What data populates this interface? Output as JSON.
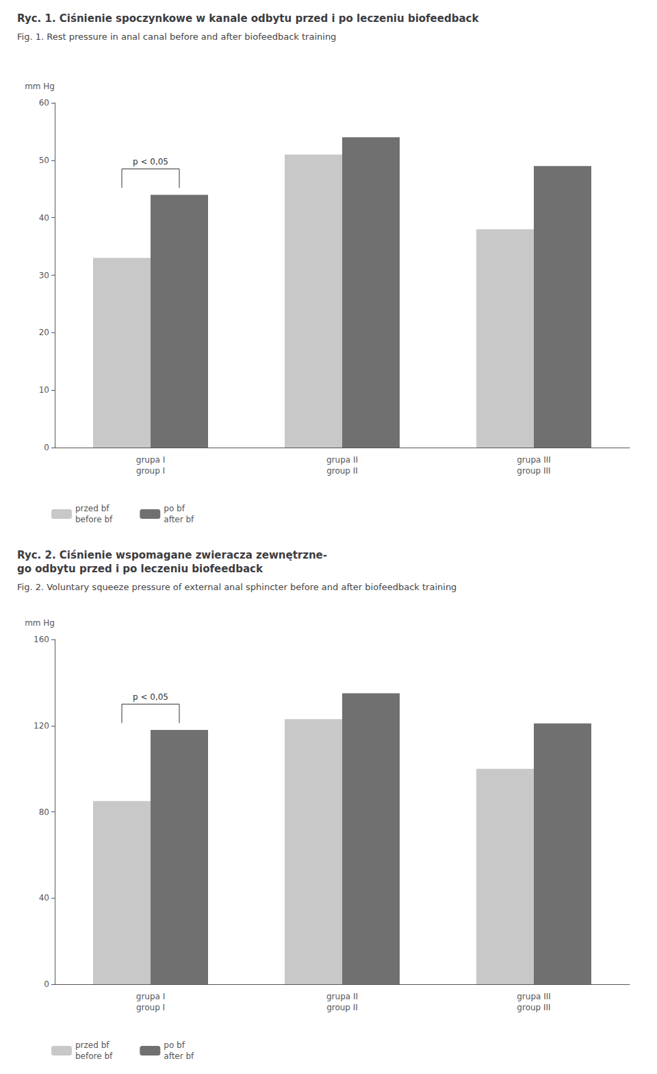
{
  "chart_data": [
    {
      "type": "bar",
      "title": "Ryc. 1. Ciśnienie spoczynkowe w kanale odbytu przed i po leczeniu biofeedback",
      "subtitle": "Fig. 1. Rest pressure in anal canal before and after biofeedback training",
      "ylabel": "mm Hg",
      "categories": [
        "grupa I\ngroup I",
        "grupa II\ngroup II",
        "grupa III\ngroup III"
      ],
      "series": [
        {
          "name": "przed bf\nbefore bf",
          "color": "#c8c8c8",
          "values": [
            33,
            51,
            38
          ]
        },
        {
          "name": "po bf\nafter bf",
          "color": "#707070",
          "values": [
            44,
            54,
            49
          ]
        }
      ],
      "ylim": [
        0,
        60
      ],
      "yticks": [
        0,
        10,
        20,
        30,
        40,
        50,
        60
      ],
      "annotation": {
        "text": "p < 0,05",
        "category": "grupa I\ngroup I"
      },
      "grid": false,
      "legend": "lower left"
    },
    {
      "type": "bar",
      "title": "Ryc. 2. Ciśnienie wspomagane zwieracza zewnętrzne-\ngo odbytu przed i po leczeniu biofeedback",
      "subtitle": "Fig. 2. Voluntary squeeze pressure of external anal sphincter before and after biofeedback training",
      "ylabel": "mm Hg",
      "categories": [
        "grupa I\ngroup I",
        "grupa II\ngroup II",
        "grupa III\ngroup III"
      ],
      "series": [
        {
          "name": "przed bf\nbefore bf",
          "color": "#c8c8c8",
          "values": [
            85,
            123,
            100
          ]
        },
        {
          "name": "po bf\nafter bf",
          "color": "#707070",
          "values": [
            118,
            135,
            121
          ]
        }
      ],
      "ylim": [
        0,
        160
      ],
      "yticks": [
        0,
        40,
        80,
        120,
        160
      ],
      "annotation": {
        "text": "p < 0,05",
        "category": "grupa I\ngroup I"
      },
      "grid": false,
      "legend": "lower left"
    }
  ]
}
